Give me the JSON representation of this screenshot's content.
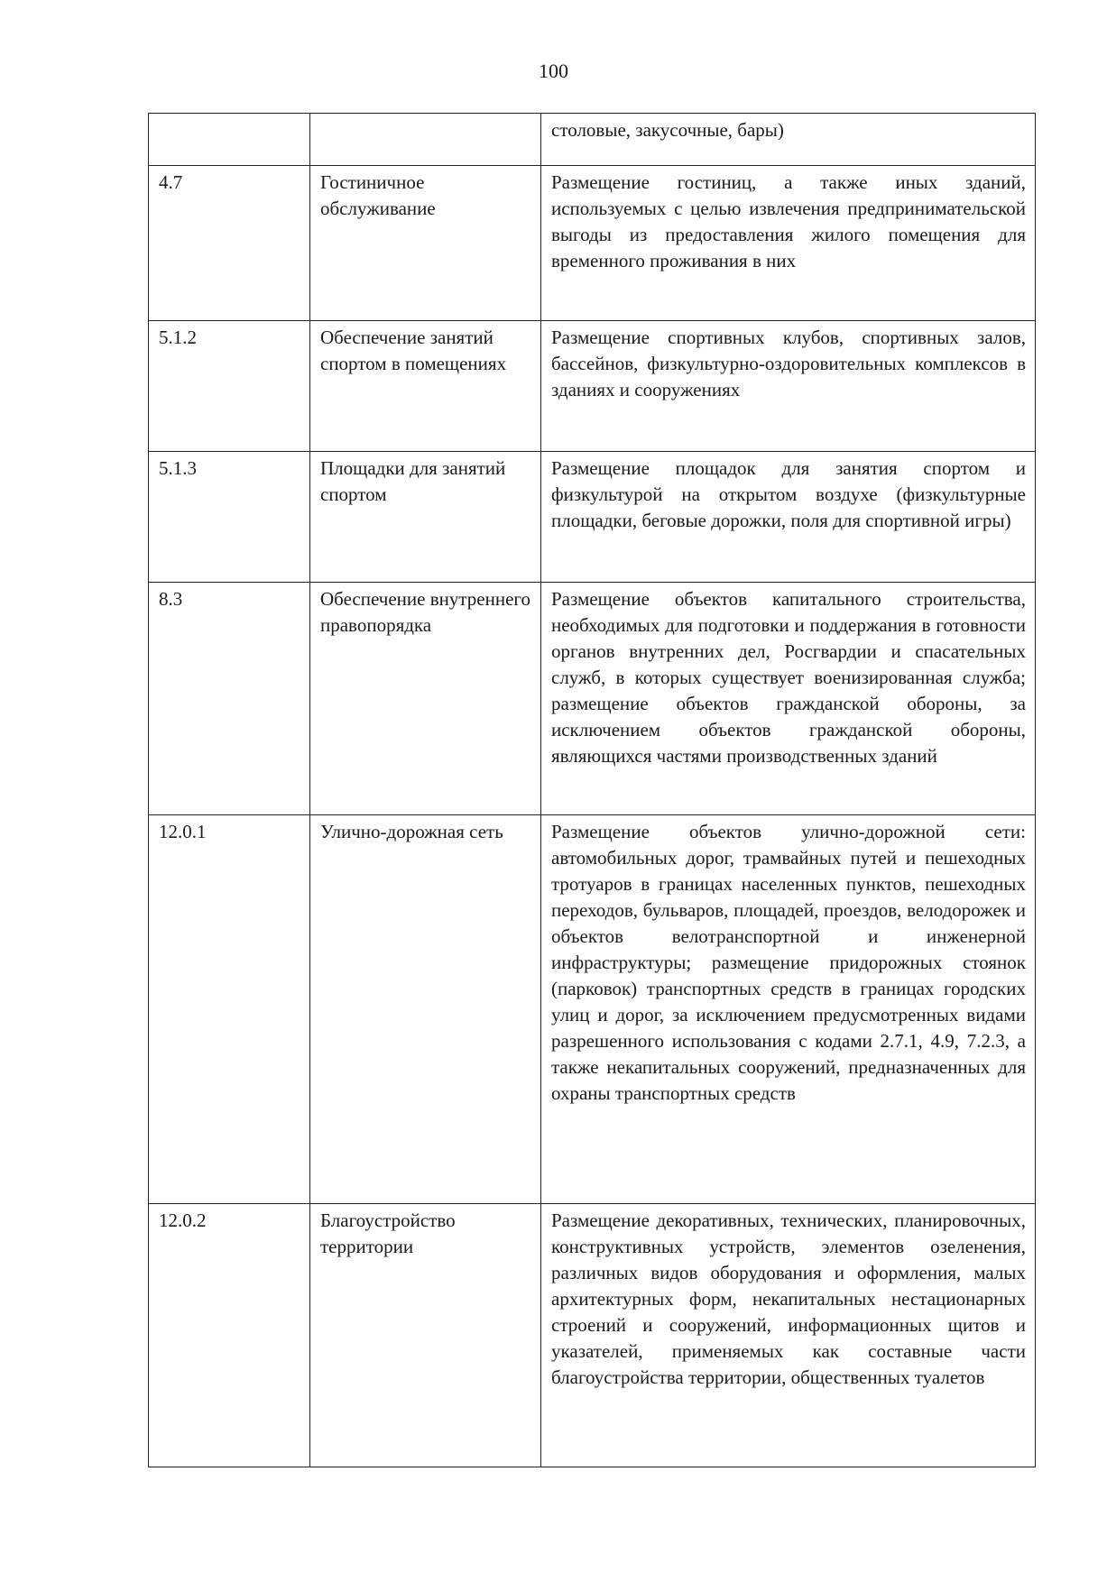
{
  "page_number": "100",
  "rows": [
    {
      "code": "",
      "name": "",
      "description": "столовые, закусочные, бары)"
    },
    {
      "code": "4.7",
      "name": "Гостиничное обслуживание",
      "description": "Размещение гостиниц, а также иных зданий, используемых с целью извлечения предпринимательской выгоды из предоставления жилого помещения для временного проживания в них"
    },
    {
      "code": "5.1.2",
      "name": "Обеспечение занятий спортом в помещениях",
      "description": "Размещение спортивных клубов, спортивных залов, бассейнов, физкультурно-оздоровительных комплексов в зданиях и сооружениях"
    },
    {
      "code": "5.1.3",
      "name": "Площадки для занятий спортом",
      "description": "Размещение площадок для занятия спортом и физкультурой на открытом воздухе (физкультурные площадки, беговые дорожки, поля для спортивной игры)"
    },
    {
      "code": "8.3",
      "name": "Обеспечение внутреннего правопорядка",
      "description": "Размещение объектов капитального строительства, необходимых для подготовки и поддержания в готовности органов внутренних дел, Росгвардии и спасательных служб, в которых существует военизированная служба; размещение объектов гражданской обороны, за исключением объектов гражданской обороны, являющихся частями производственных зданий"
    },
    {
      "code": "12.0.1",
      "name": "Улично-дорожная сеть",
      "description": "Размещение объектов улично-дорожной сети: автомобильных дорог, трамвайных путей и пешеходных тротуаров в границах населенных пунктов, пешеходных переходов, бульваров, площадей, проездов, велодорожек и объектов велотранспортной и инженерной инфраструктуры; размещение придорожных стоянок (парковок) транспортных средств в границах городских улиц и дорог, за исключением предусмотренных видами разрешенного использования с кодами 2.7.1, 4.9, 7.2.3, а также некапитальных сооружений, предназначенных для охраны транспортных средств"
    },
    {
      "code": "12.0.2",
      "name": "Благоустройство территории",
      "description": "Размещение декоративных, технических, планировочных, конструктивных устройств, элементов озеленения, различных видов оборудования и оформления, малых архитектурных форм, некапитальных нестационарных строений и сооружений, информационных щитов и указателей, применяемых как составные части благоустройства территории, общественных туалетов"
    }
  ]
}
